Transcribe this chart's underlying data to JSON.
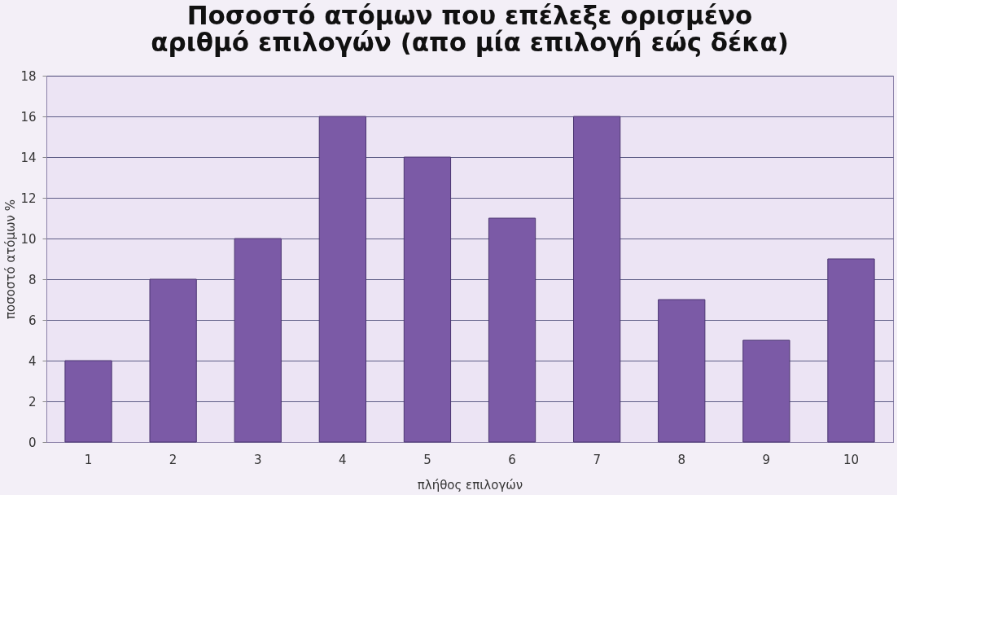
{
  "chart_data": {
    "type": "bar",
    "title": [
      "Ποσοστό ατόμων που επέλεξε ορισμένο",
      "αριθμό επιλογών (απο μία επιλογή εώς δέκα)"
    ],
    "xlabel": "πλήθος επιλογών",
    "ylabel": "ποσοστό ατόμων %",
    "categories": [
      "1",
      "2",
      "3",
      "4",
      "5",
      "6",
      "7",
      "8",
      "9",
      "10"
    ],
    "values": [
      4,
      8,
      10,
      16,
      14,
      11,
      16,
      7,
      5,
      9
    ],
    "color": "#7b5aa6",
    "ylim": [
      0,
      18
    ],
    "yticks": [
      0,
      2,
      4,
      6,
      8,
      10,
      12,
      14,
      16,
      18
    ],
    "grid": "y"
  }
}
